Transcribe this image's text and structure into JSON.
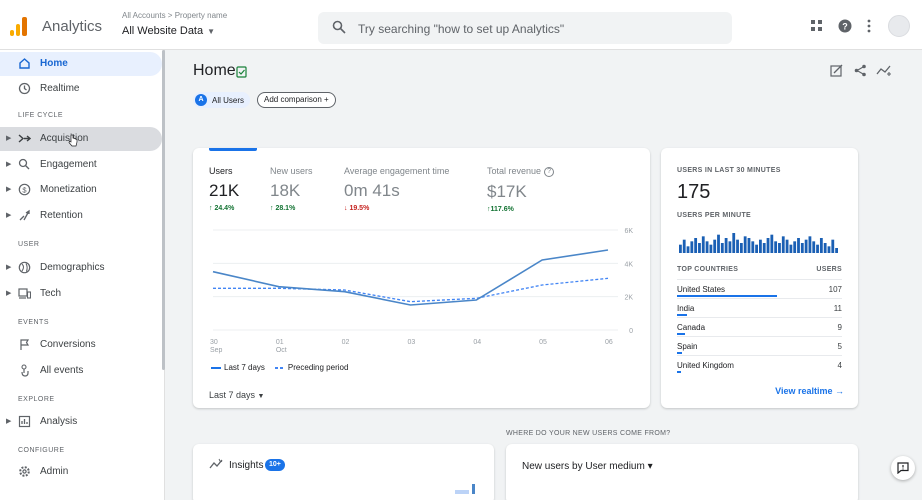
{
  "header": {
    "app_title": "Analytics",
    "account_path": "All Accounts > Property name",
    "property": "All Website Data",
    "search_placeholder": "Try searching \"how to set up Analytics\""
  },
  "sidebar": {
    "items": [
      {
        "label": "Home",
        "icon": "home-icon",
        "active": true
      },
      {
        "label": "Realtime",
        "icon": "clock-icon"
      }
    ],
    "sections": [
      {
        "title": "LIFE CYCLE",
        "items": [
          {
            "label": "Acquisition",
            "icon": "acquisition-icon"
          },
          {
            "label": "Engagement",
            "icon": "engagement-icon"
          },
          {
            "label": "Monetization",
            "icon": "dollar-icon"
          },
          {
            "label": "Retention",
            "icon": "retention-icon"
          }
        ]
      },
      {
        "title": "USER",
        "items": [
          {
            "label": "Demographics",
            "icon": "globe-icon"
          },
          {
            "label": "Tech",
            "icon": "device-icon"
          }
        ]
      },
      {
        "title": "EVENTS",
        "items": [
          {
            "label": "Conversions",
            "icon": "flag-icon"
          },
          {
            "label": "All events",
            "icon": "touch-icon"
          }
        ]
      },
      {
        "title": "EXPLORE",
        "items": [
          {
            "label": "Analysis",
            "icon": "analysis-icon"
          }
        ]
      },
      {
        "title": "CONFIGURE",
        "items": [
          {
            "label": "Admin",
            "icon": "gear-icon"
          }
        ]
      }
    ]
  },
  "main": {
    "title": "Home",
    "chip_all_users": "All Users",
    "chip_all_users_letter": "A",
    "add_comparison": "Add comparison",
    "metrics": [
      {
        "label": "Users",
        "value": "21K",
        "change": "↑ 24.4%",
        "dir": "up"
      },
      {
        "label": "New users",
        "value": "18K",
        "change": "↑ 28.1%",
        "dir": "up"
      },
      {
        "label": "Average engagement time",
        "value": "0m 41s",
        "change": "↓ 19.5%",
        "dir": "down"
      },
      {
        "label": "Total revenue",
        "value": "$17K",
        "change": "↑117.6%",
        "dir": "up"
      }
    ],
    "legend_current": "Last 7 days",
    "legend_previous": "Preceding period",
    "date_range": "Last 7 days"
  },
  "chart_data": {
    "type": "line",
    "x": [
      "30 Sep",
      "01 Oct",
      "02",
      "03",
      "04",
      "05",
      "06"
    ],
    "x_labels": [
      [
        "30",
        "Sep"
      ],
      [
        "01",
        "Oct"
      ],
      [
        "02",
        ""
      ],
      [
        "03",
        ""
      ],
      [
        "04",
        ""
      ],
      [
        "05",
        ""
      ],
      [
        "06",
        ""
      ]
    ],
    "yticks": [
      "6K",
      "4K",
      "2K",
      "0"
    ],
    "ylim": [
      0,
      6000
    ],
    "series": [
      {
        "name": "Last 7 days",
        "values": [
          3500,
          2600,
          2300,
          1500,
          1800,
          4200,
          4800
        ]
      },
      {
        "name": "Preceding period",
        "values": [
          2500,
          2500,
          2400,
          1700,
          1900,
          2700,
          3100
        ]
      }
    ],
    "colors": {
      "current": "#4a86c8",
      "previous": "#4285f4"
    }
  },
  "realtime": {
    "title": "USERS IN LAST 30 MINUTES",
    "value": "175",
    "per_minute_title": "USERS PER MINUTE",
    "per_minute": [
      5,
      8,
      4,
      7,
      9,
      6,
      10,
      7,
      5,
      8,
      11,
      6,
      9,
      7,
      12,
      8,
      6,
      10,
      9,
      7,
      5,
      8,
      6,
      9,
      11,
      7,
      6,
      10,
      8,
      5,
      7,
      9,
      6,
      8,
      10,
      7,
      5,
      9,
      6,
      4,
      8,
      3
    ],
    "countries_header": "TOP COUNTRIES",
    "users_header": "USERS",
    "countries": [
      {
        "name": "United States",
        "users": "107",
        "share": 1.0
      },
      {
        "name": "India",
        "users": "11",
        "share": 0.1
      },
      {
        "name": "Canada",
        "users": "9",
        "share": 0.08
      },
      {
        "name": "Spain",
        "users": "5",
        "share": 0.05
      },
      {
        "name": "United Kingdom",
        "users": "4",
        "share": 0.04
      }
    ],
    "link": "View realtime →"
  },
  "lower": {
    "where_title": "WHERE DO YOUR NEW USERS COME FROM?",
    "insights": "Insights",
    "insights_badge": "10+",
    "new_users_select": "New users by User medium ▾"
  }
}
